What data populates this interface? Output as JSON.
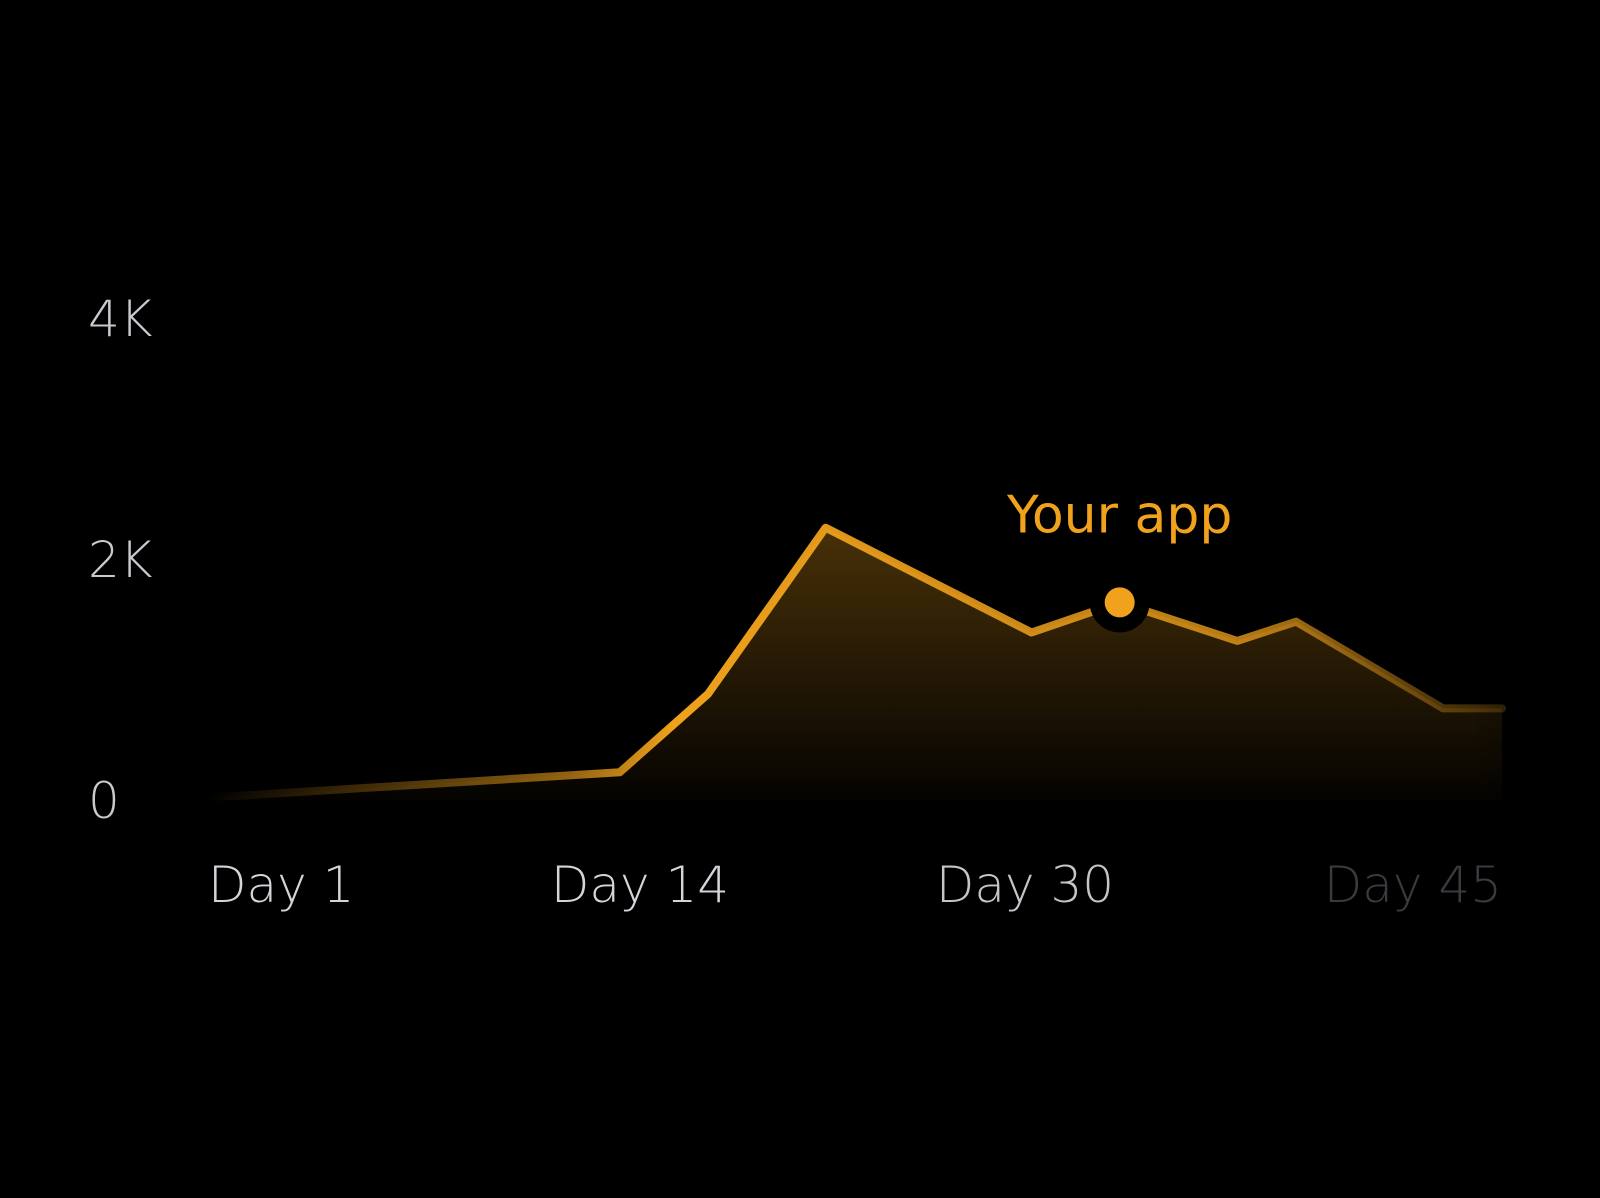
{
  "chart_data": {
    "type": "area",
    "title": "",
    "xlabel": "",
    "ylabel": "",
    "x_ticks": [
      "Day 1",
      "Day 14",
      "Day 30",
      "Day 45"
    ],
    "x_tick_values": [
      1,
      14,
      30,
      45
    ],
    "y_ticks": [
      "0",
      "2K",
      "4K"
    ],
    "y_tick_values": [
      0,
      2000,
      4000
    ],
    "xlim": [
      1,
      45
    ],
    "ylim": [
      0,
      4000
    ],
    "grid": "horizontal",
    "series": [
      {
        "name": "Your app",
        "color": "#f0a21c",
        "x": [
          1,
          15,
          18,
          22,
          29,
          32,
          36,
          38,
          43,
          45
        ],
        "y": [
          20,
          230,
          880,
          2260,
          1390,
          1640,
          1320,
          1480,
          760,
          760
        ],
        "highlight": {
          "x": 32,
          "y": 1640
        }
      }
    ]
  }
}
